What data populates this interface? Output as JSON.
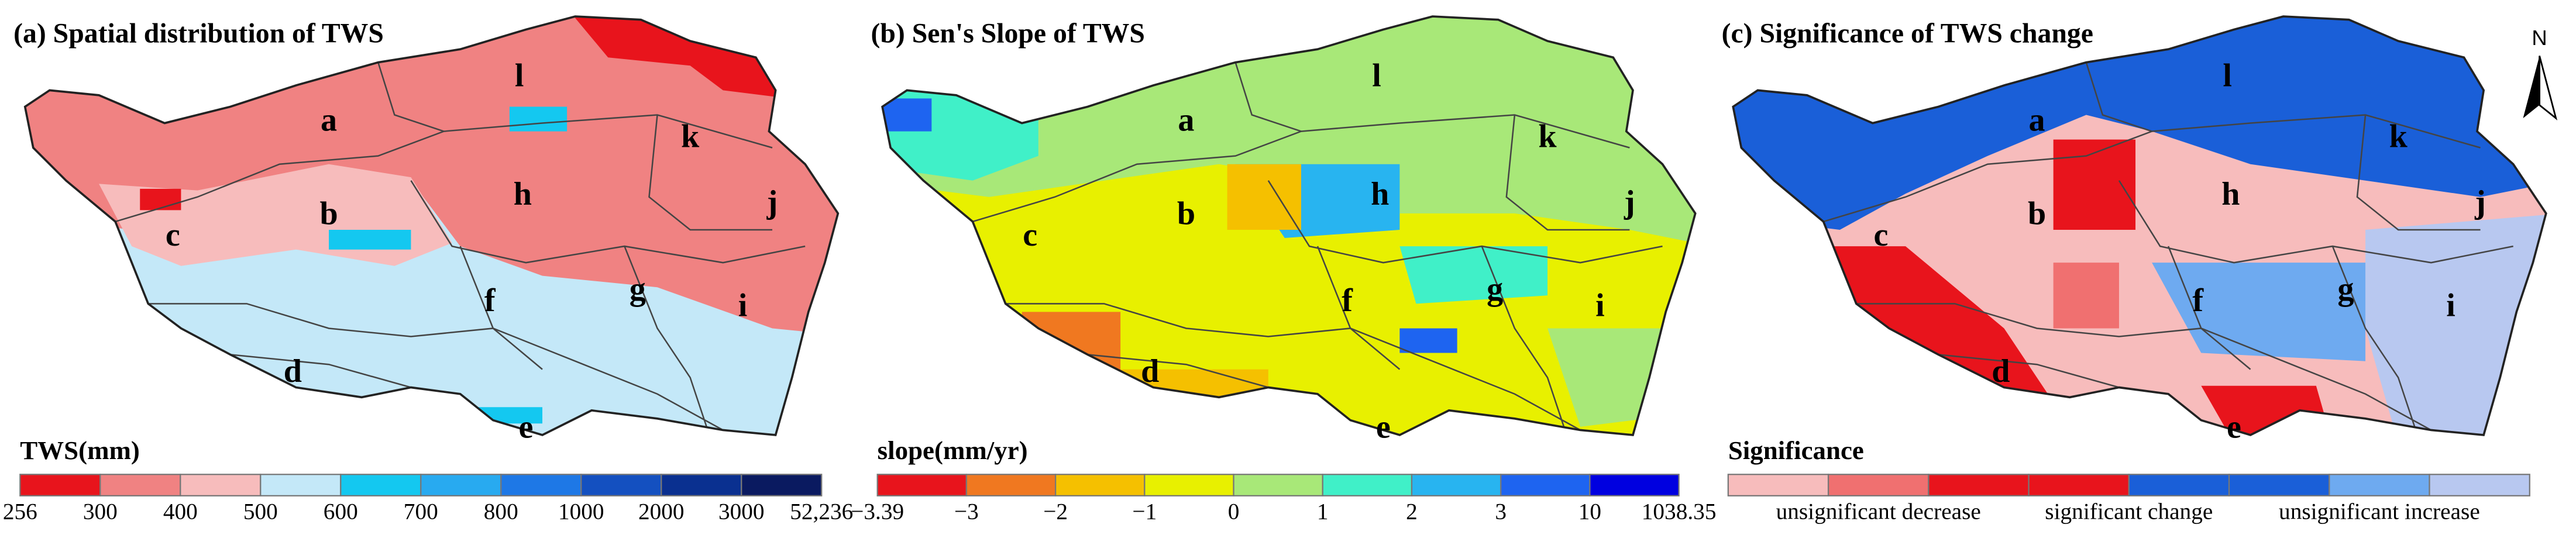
{
  "panels": [
    {
      "title": "(a) Spatial distribution of TWS",
      "regions": [
        "a",
        "b",
        "c",
        "d",
        "e",
        "f",
        "g",
        "h",
        "i",
        "j",
        "k",
        "l"
      ],
      "legend": {
        "title": "TWS(mm)",
        "colors": [
          "#e8141c",
          "#f08282",
          "#f7bcbc",
          "#c4e8f8",
          "#14c8f0",
          "#28aaf0",
          "#1e78e6",
          "#1450c0",
          "#0a3090",
          "#0a1a60"
        ],
        "labels": [
          "256",
          "300",
          "400",
          "500",
          "600",
          "700",
          "800",
          "1000",
          "2000",
          "3000",
          "52,236"
        ]
      }
    },
    {
      "title": "(b) Sen's Slope of TWS",
      "regions": [
        "a",
        "b",
        "c",
        "d",
        "e",
        "f",
        "g",
        "h",
        "i",
        "j",
        "k",
        "l"
      ],
      "legend": {
        "title": "slope(mm/yr)",
        "colors": [
          "#e8141c",
          "#f07820",
          "#f5c000",
          "#e8f000",
          "#a8e878",
          "#40f0c8",
          "#28b4f0",
          "#1e64f0",
          "#0000e0"
        ],
        "labels": [
          "−3.39",
          "−3",
          "−2",
          "−1",
          "0",
          "1",
          "2",
          "3",
          "10",
          "1038.35"
        ]
      }
    },
    {
      "title": "(c) Significance of TWS change",
      "regions": [
        "a",
        "b",
        "c",
        "d",
        "e",
        "f",
        "g",
        "h",
        "i",
        "j",
        "k",
        "l"
      ],
      "legend": {
        "title": "Significance",
        "colors": [
          "#f7bcbc",
          "#f07070",
          "#e8141c",
          "#e8141c",
          "#1a5fd8",
          "#1a5fd8",
          "#6eaaf0",
          "#b8c8f0"
        ],
        "labels": [
          "unsignificant decrease",
          "significant change",
          "unsignificant increase"
        ]
      }
    }
  ],
  "north": "N"
}
